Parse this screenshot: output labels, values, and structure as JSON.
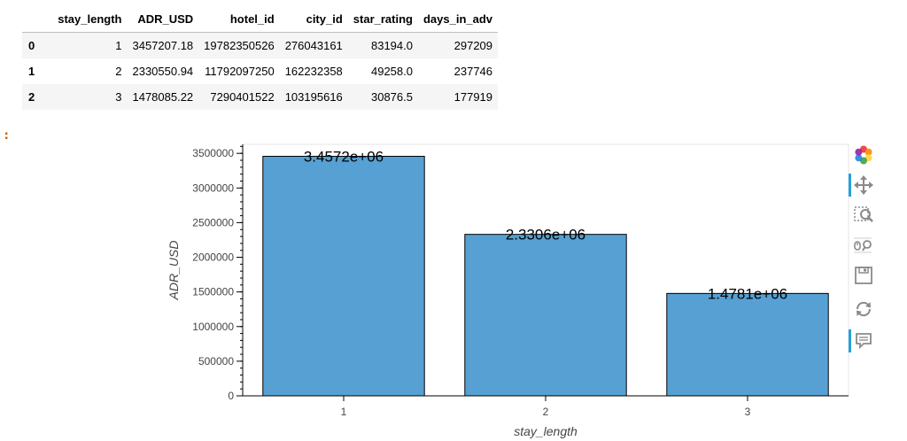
{
  "table": {
    "columns": [
      "stay_length",
      "ADR_USD",
      "hotel_id",
      "city_id",
      "star_rating",
      "days_in_adv"
    ],
    "rows": [
      {
        "index": "0",
        "cells": [
          "1",
          "3457207.18",
          "19782350526",
          "276043161",
          "83194.0",
          "297209"
        ]
      },
      {
        "index": "1",
        "cells": [
          "2",
          "2330550.94",
          "11792097250",
          "162232358",
          "49258.0",
          "237746"
        ]
      },
      {
        "index": "2",
        "cells": [
          "3",
          "1478085.22",
          "7290401522",
          "103195616",
          "30876.5",
          "177919"
        ]
      }
    ]
  },
  "prompt_marker": ":",
  "chart_data": {
    "type": "bar",
    "categories": [
      "1",
      "2",
      "3"
    ],
    "values": [
      3457207.18,
      2330550.94,
      1478085.22
    ],
    "data_labels": [
      "3.4572e+06",
      "2.3306e+06",
      "1.4781e+06"
    ],
    "xlabel": "stay_length",
    "ylabel": "ADR_USD",
    "ylim": [
      0,
      3630000
    ],
    "yticks": [
      0,
      500000,
      1000000,
      1500000,
      2000000,
      2500000,
      3000000,
      3500000
    ],
    "bar_color": "#56a0d3",
    "bar_edge_color": "#000000",
    "grid": false
  },
  "toolbar": {
    "tools": [
      {
        "name": "bokeh-logo-icon",
        "active": false
      },
      {
        "name": "pan-tool-icon",
        "active": true
      },
      {
        "name": "box-zoom-tool-icon",
        "active": false
      },
      {
        "name": "wheel-zoom-tool-icon",
        "active": false
      },
      {
        "name": "save-tool-icon",
        "active": false
      },
      {
        "name": "reset-tool-icon",
        "active": false
      },
      {
        "name": "hover-tool-icon",
        "active": true
      }
    ]
  }
}
